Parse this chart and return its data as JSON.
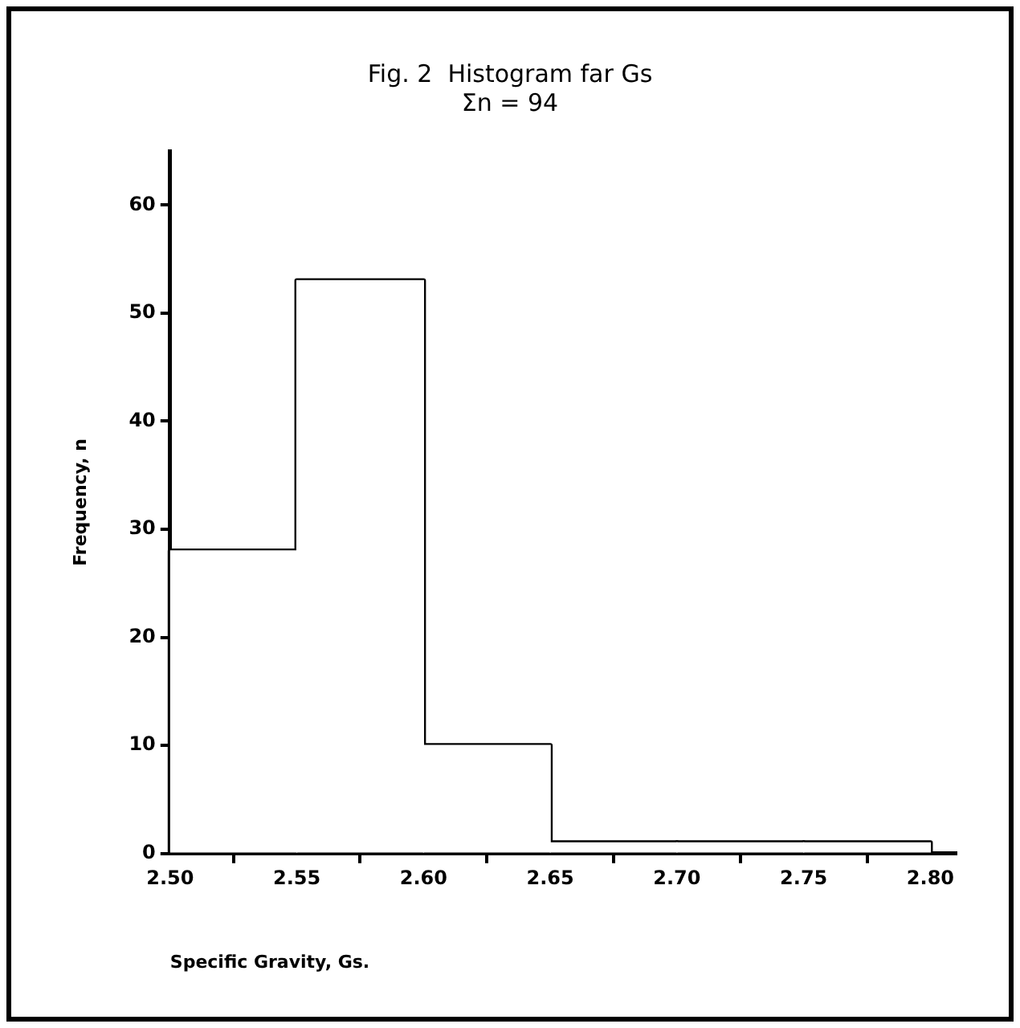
{
  "chart_data": {
    "type": "histogram",
    "title": "Fig. 2  Histogram far Gs",
    "subtitle": "Σn = 94",
    "xlabel": "Specific Gravity, Gs.",
    "ylabel": "Frequency, n",
    "bins": [
      2.5,
      2.55,
      2.6,
      2.65,
      2.7,
      2.75,
      2.8
    ],
    "values": [
      28,
      53,
      10,
      1,
      1,
      1
    ],
    "color": "#ffffff",
    "xlim": [
      2.5,
      2.81
    ],
    "ylim": [
      0,
      65
    ],
    "xticks": [
      {
        "value": 2.5,
        "label": "2.50"
      },
      {
        "value": 2.55,
        "label": "2.55"
      },
      {
        "value": 2.6,
        "label": "2.60"
      },
      {
        "value": 2.65,
        "label": "2.65"
      },
      {
        "value": 2.7,
        "label": "2.70"
      },
      {
        "value": 2.75,
        "label": "2.75"
      },
      {
        "value": 2.8,
        "label": "2.80"
      }
    ],
    "yticks": [
      0,
      10,
      20,
      30,
      40,
      50,
      60
    ],
    "grid": false,
    "legend": false
  }
}
